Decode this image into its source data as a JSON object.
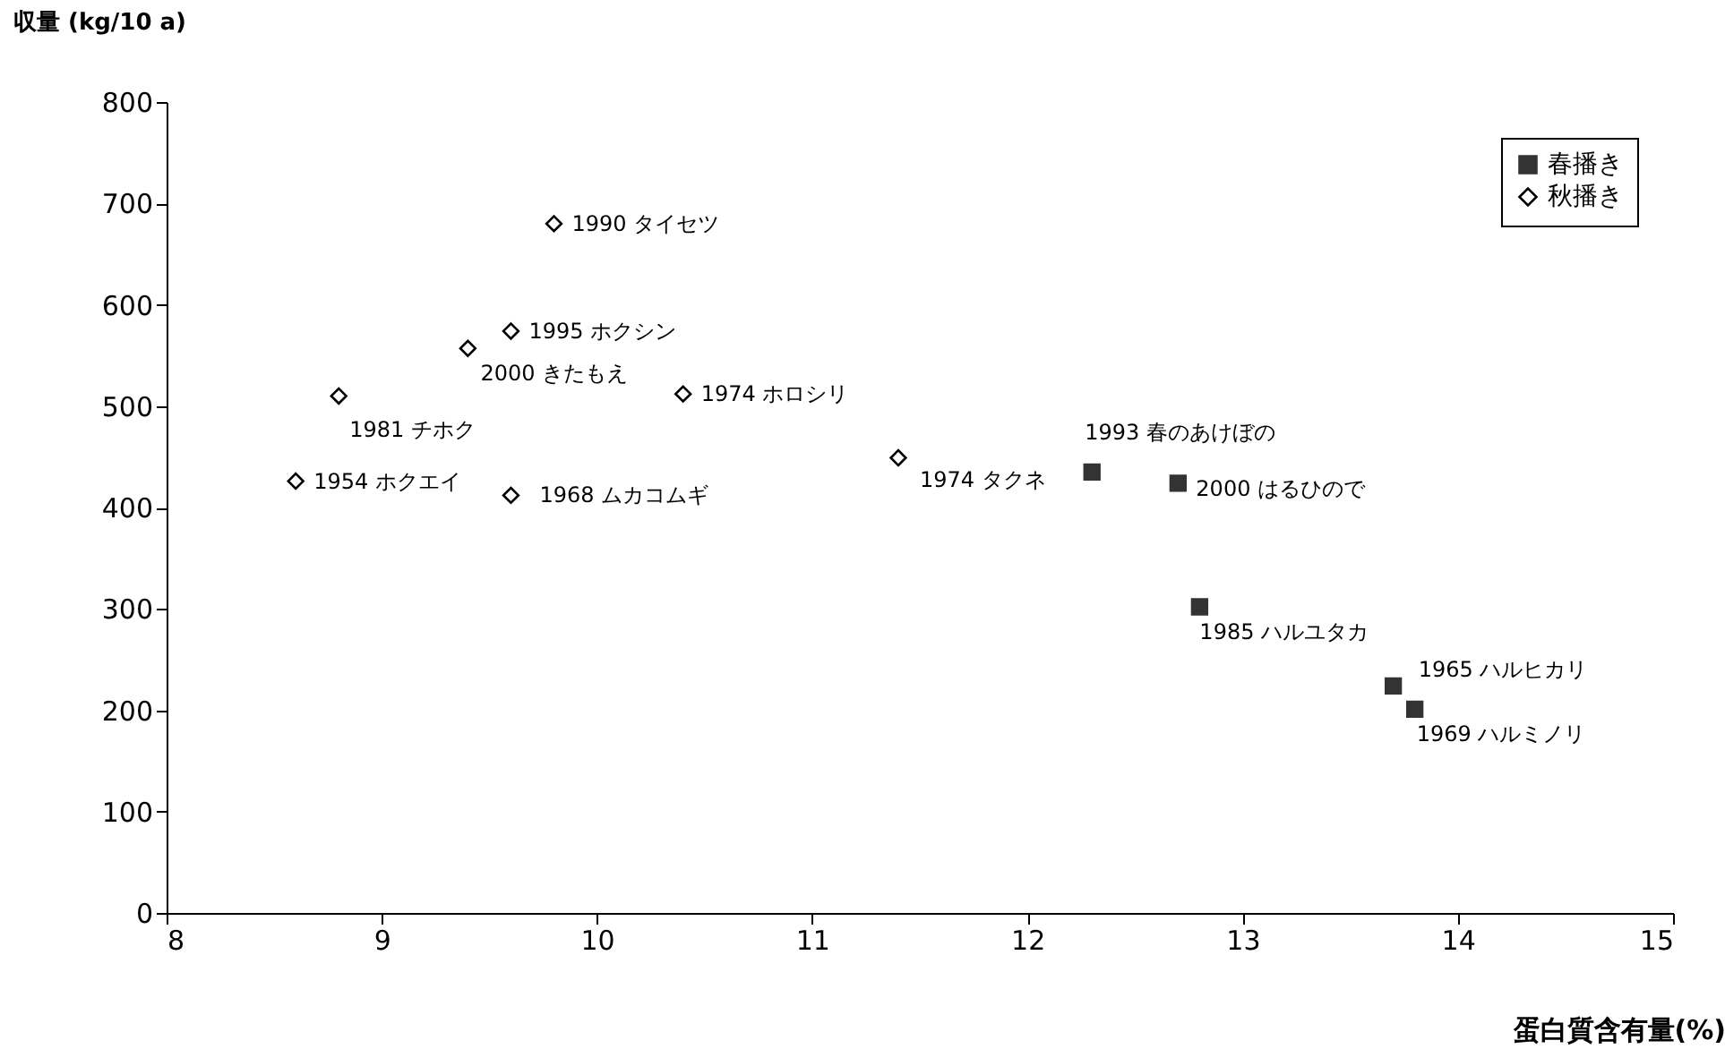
{
  "chart_data": {
    "type": "scatter",
    "xlabel": "蛋白質含有量(%)",
    "ylabel": "収量 (kg/10 a)",
    "xlim": [
      8,
      15
    ],
    "xticks": [
      8,
      9,
      10,
      11,
      12,
      13,
      14,
      15
    ],
    "ylim": [
      0,
      800
    ],
    "yticks": [
      0,
      100,
      200,
      300,
      400,
      500,
      600,
      700,
      800
    ],
    "grid": false,
    "legend": "top right",
    "series": [
      {
        "name": "春播き",
        "color": "#333333",
        "marker": "square",
        "x": [
          12.3,
          12.7,
          12.8,
          13.7,
          13.8
        ],
        "values": [
          435,
          424,
          302,
          224,
          201
        ]
      },
      {
        "name": "秋播き",
        "color": "#000000",
        "marker": "diamond",
        "x": [
          9.8,
          9.6,
          9.4,
          10.4,
          8.8,
          8.6,
          9.6,
          11.4
        ],
        "values": [
          680,
          574,
          557,
          512,
          510,
          426,
          412,
          449
        ]
      }
    ],
    "annotations": [
      {
        "text": "1990 タイセツ",
        "x": 9.8,
        "y": 680
      },
      {
        "text": "1995 ホクシン",
        "x": 9.6,
        "y": 574
      },
      {
        "text": "2000 きたもえ",
        "x": 9.4,
        "y": 557
      },
      {
        "text": "1974 ホロシリ",
        "x": 10.4,
        "y": 512
      },
      {
        "text": "1981 チホク",
        "x": 8.8,
        "y": 510
      },
      {
        "text": "1954 ホクエイ",
        "x": 8.6,
        "y": 426
      },
      {
        "text": "1968 ムカコムギ",
        "x": 9.6,
        "y": 412
      },
      {
        "text": "1974 タクネ",
        "x": 11.4,
        "y": 449
      },
      {
        "text": "1993 春のあけぼの",
        "x": 12.3,
        "y": 435
      },
      {
        "text": "2000 はるひので",
        "x": 12.7,
        "y": 424
      },
      {
        "text": "1985 ハルユタカ",
        "x": 12.8,
        "y": 302
      },
      {
        "text": "1965 ハルヒカリ",
        "x": 13.7,
        "y": 224
      },
      {
        "text": "1969 ハルミノリ",
        "x": 13.8,
        "y": 201
      }
    ]
  }
}
